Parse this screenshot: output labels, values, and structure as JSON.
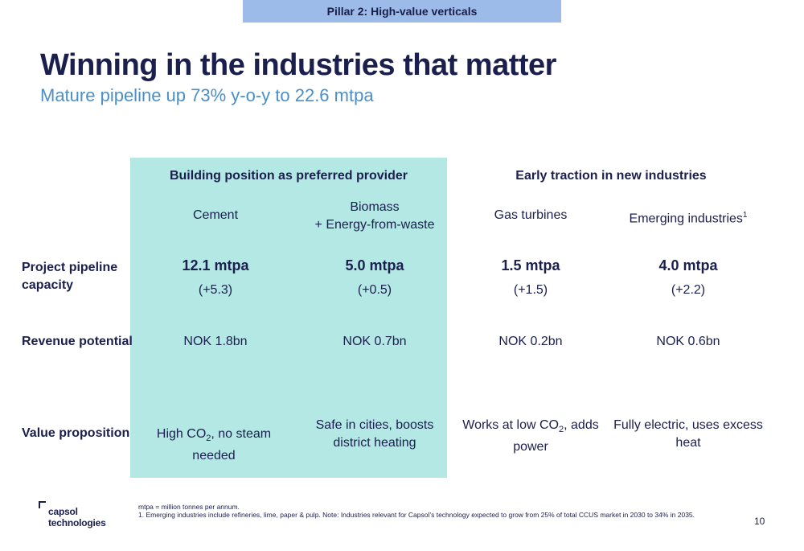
{
  "header": {
    "pillar_tag": "Pillar 2: High-value verticals",
    "title": "Winning in the industries that matter",
    "subtitle": "Mature pipeline up 73% y-o-y to 22.6 mtpa"
  },
  "table": {
    "group_left": "Building position as preferred provider",
    "group_right": "Early traction in new industries",
    "columns": {
      "cement": "Cement",
      "biomass_line1": "Biomass",
      "biomass_line2": "+ Energy-from-waste",
      "gas": "Gas turbines",
      "emerging": "Emerging industries",
      "emerging_sup": "1"
    },
    "rows": {
      "pipeline_label_line1": "Project pipeline",
      "pipeline_label_line2": "capacity",
      "revenue_label": "Revenue potential",
      "value_label": "Value proposition"
    },
    "pipeline": {
      "cement": "12.1 mtpa",
      "cement_delta": "(+5.3)",
      "biomass": "5.0 mtpa",
      "biomass_delta": "(+0.5)",
      "gas": "1.5 mtpa",
      "gas_delta": "(+1.5)",
      "emerging": "4.0 mtpa",
      "emerging_delta": "(+2.2)"
    },
    "revenue": {
      "cement": "NOK 1.8bn",
      "biomass": "NOK 0.7bn",
      "gas": "NOK 0.2bn",
      "emerging": "NOK 0.6bn"
    },
    "value": {
      "cement_pre": "High CO",
      "cement_sub": "2",
      "cement_post": ", no steam needed",
      "biomass_line1": "Safe in cities, boosts",
      "biomass_line2": "district heating",
      "gas_pre": "Works at low CO",
      "gas_sub": "2",
      "gas_post": ", adds",
      "gas_line2": "power",
      "emerging_line1": "Fully electric, uses excess",
      "emerging_line2": "heat"
    }
  },
  "footer": {
    "logo_line1": "capsol",
    "logo_line2": "technologies",
    "footnote1": "mtpa = million tonnes per annum.",
    "footnote2": "1. Emerging industries include refineries, lime, paper & pulp. Note: Industries relevant for Capsol’s technology expected to grow from 25% of total CCUS market in 2030 to 34% in 2035.",
    "page_number": "10"
  },
  "colors": {
    "navy": "#1b1f4d",
    "subtitle_blue": "#4a8fc7",
    "tag_blue": "#9dbbe8",
    "highlight_teal": "#b3e8e5"
  }
}
